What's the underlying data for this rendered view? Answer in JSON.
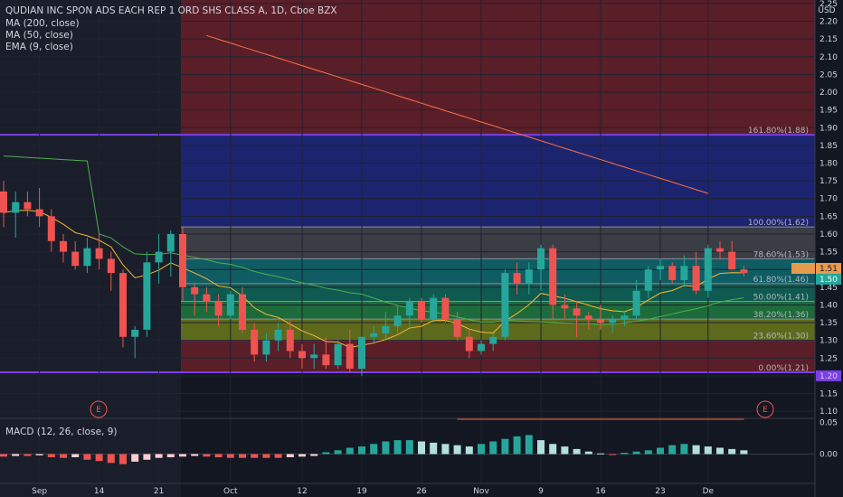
{
  "header": {
    "title": "QUDIAN INC SPON ADS EACH REP 1 ORD SHS CLASS A, 1D, Cboe BZX",
    "ma200": "MA (200, close)",
    "ma50": "MA (50, close)",
    "ema9": "EMA (9, close)",
    "currency": "USD"
  },
  "macd_label": "MACD (12, 26, close, 9)",
  "colors": {
    "background": "#131722",
    "up": "#26a69a",
    "down": "#ef5350",
    "ma200": "#ff7043",
    "ma50": "#4caf50",
    "ema9": "#f7b731",
    "macd_line": "#29b6f6",
    "signal_line": "#ff5722",
    "fib_top_zone": "#6b1f2a",
    "fib_ext_zone": "#1f2a7a",
    "fib_purple": "#7b3fe4"
  },
  "price_labels": {
    "current": "1.50",
    "pivot": "1.51"
  },
  "event_markers": [
    "E",
    "E"
  ],
  "chart_data": {
    "type": "candlestick",
    "price_axis": {
      "ticks": [
        "2.25",
        "2.20",
        "2.15",
        "2.10",
        "2.05",
        "2.00",
        "1.95",
        "1.90",
        "1.85",
        "1.80",
        "1.75",
        "1.70",
        "1.65",
        "1.60",
        "1.55",
        "1.50",
        "1.45",
        "1.40",
        "1.35",
        "1.30",
        "1.25",
        "1.20",
        "1.15",
        "1.10"
      ],
      "range": [
        1.08,
        2.26
      ],
      "highlighted": [
        "1.88",
        "1.20"
      ]
    },
    "x_axis": {
      "labels": [
        {
          "text": "Sep",
          "index": 3
        },
        {
          "text": "14",
          "index": 8
        },
        {
          "text": "21",
          "index": 13
        },
        {
          "text": "Oct",
          "index": 19
        },
        {
          "text": "12",
          "index": 25
        },
        {
          "text": "19",
          "index": 30
        },
        {
          "text": "26",
          "index": 35
        },
        {
          "text": "Nov",
          "index": 40
        },
        {
          "text": "9",
          "index": 45
        },
        {
          "text": "16",
          "index": 50
        },
        {
          "text": "23",
          "index": 55
        },
        {
          "text": "De",
          "index": 59
        }
      ]
    },
    "candles": [
      [
        1.72,
        1.75,
        1.62,
        1.66
      ],
      [
        1.66,
        1.72,
        1.59,
        1.69
      ],
      [
        1.69,
        1.72,
        1.65,
        1.67
      ],
      [
        1.67,
        1.73,
        1.62,
        1.65
      ],
      [
        1.65,
        1.67,
        1.55,
        1.58
      ],
      [
        1.58,
        1.6,
        1.52,
        1.55
      ],
      [
        1.55,
        1.58,
        1.5,
        1.51
      ],
      [
        1.51,
        1.59,
        1.49,
        1.56
      ],
      [
        1.56,
        1.6,
        1.5,
        1.53
      ],
      [
        1.53,
        1.55,
        1.44,
        1.49
      ],
      [
        1.49,
        1.5,
        1.28,
        1.31
      ],
      [
        1.31,
        1.34,
        1.25,
        1.33
      ],
      [
        1.33,
        1.55,
        1.31,
        1.52
      ],
      [
        1.52,
        1.6,
        1.46,
        1.55
      ],
      [
        1.55,
        1.61,
        1.48,
        1.6
      ],
      [
        1.6,
        1.62,
        1.41,
        1.45
      ],
      [
        1.45,
        1.46,
        1.37,
        1.43
      ],
      [
        1.43,
        1.45,
        1.38,
        1.41
      ],
      [
        1.41,
        1.43,
        1.34,
        1.37
      ],
      [
        1.37,
        1.44,
        1.36,
        1.43
      ],
      [
        1.43,
        1.45,
        1.32,
        1.33
      ],
      [
        1.33,
        1.35,
        1.24,
        1.26
      ],
      [
        1.26,
        1.32,
        1.24,
        1.3
      ],
      [
        1.3,
        1.35,
        1.27,
        1.33
      ],
      [
        1.33,
        1.36,
        1.25,
        1.27
      ],
      [
        1.27,
        1.29,
        1.22,
        1.25
      ],
      [
        1.25,
        1.29,
        1.22,
        1.26
      ],
      [
        1.26,
        1.31,
        1.22,
        1.23
      ],
      [
        1.23,
        1.3,
        1.22,
        1.29
      ],
      [
        1.29,
        1.33,
        1.21,
        1.22
      ],
      [
        1.22,
        1.31,
        1.2,
        1.31
      ],
      [
        1.31,
        1.34,
        1.29,
        1.32
      ],
      [
        1.32,
        1.38,
        1.3,
        1.34
      ],
      [
        1.34,
        1.4,
        1.32,
        1.37
      ],
      [
        1.37,
        1.42,
        1.34,
        1.41
      ],
      [
        1.41,
        1.42,
        1.35,
        1.36
      ],
      [
        1.36,
        1.43,
        1.35,
        1.42
      ],
      [
        1.42,
        1.43,
        1.35,
        1.36
      ],
      [
        1.36,
        1.38,
        1.3,
        1.31
      ],
      [
        1.31,
        1.33,
        1.25,
        1.27
      ],
      [
        1.27,
        1.3,
        1.26,
        1.29
      ],
      [
        1.29,
        1.32,
        1.27,
        1.31
      ],
      [
        1.31,
        1.5,
        1.3,
        1.49
      ],
      [
        1.49,
        1.52,
        1.43,
        1.46
      ],
      [
        1.46,
        1.52,
        1.43,
        1.5
      ],
      [
        1.5,
        1.57,
        1.44,
        1.56
      ],
      [
        1.56,
        1.57,
        1.36,
        1.4
      ],
      [
        1.4,
        1.43,
        1.36,
        1.39
      ],
      [
        1.39,
        1.41,
        1.31,
        1.37
      ],
      [
        1.37,
        1.38,
        1.33,
        1.36
      ],
      [
        1.36,
        1.4,
        1.33,
        1.35
      ],
      [
        1.35,
        1.37,
        1.32,
        1.36
      ],
      [
        1.36,
        1.38,
        1.34,
        1.37
      ],
      [
        1.37,
        1.47,
        1.36,
        1.44
      ],
      [
        1.44,
        1.51,
        1.42,
        1.5
      ],
      [
        1.5,
        1.53,
        1.47,
        1.51
      ],
      [
        1.51,
        1.52,
        1.46,
        1.47
      ],
      [
        1.47,
        1.54,
        1.45,
        1.51
      ],
      [
        1.51,
        1.55,
        1.43,
        1.44
      ],
      [
        1.44,
        1.57,
        1.42,
        1.56
      ],
      [
        1.56,
        1.58,
        1.53,
        1.55
      ],
      [
        1.55,
        1.58,
        1.5,
        1.5
      ],
      [
        1.5,
        1.51,
        1.48,
        1.49
      ]
    ],
    "fib_levels": [
      {
        "label": "161.80%(1.88)",
        "price": 1.88
      },
      {
        "label": "100.00%(1.62)",
        "price": 1.62
      },
      {
        "label": "78.60%(1.53)",
        "price": 1.53
      },
      {
        "label": "61.80%(1.46)",
        "price": 1.46
      },
      {
        "label": "50.00%(1.41)",
        "price": 1.41
      },
      {
        "label": "38.20%(1.36)",
        "price": 1.36
      },
      {
        "label": "23.60%(1.30)",
        "price": 1.3
      },
      {
        "label": "0.00%(1.21)",
        "price": 1.21
      }
    ],
    "macd_axis": {
      "ticks": [
        "0.05",
        "0.00"
      ],
      "range": [
        -0.045,
        0.055
      ]
    },
    "macd_histogram": [
      -0.004,
      -0.003,
      -0.003,
      -0.002,
      -0.005,
      -0.006,
      -0.005,
      -0.009,
      -0.011,
      -0.014,
      -0.016,
      -0.012,
      -0.009,
      -0.006,
      -0.005,
      -0.004,
      -0.003,
      -0.004,
      -0.005,
      -0.006,
      -0.006,
      -0.006,
      -0.006,
      -0.006,
      -0.005,
      -0.004,
      -0.003,
      0.003,
      0.006,
      0.01,
      0.012,
      0.016,
      0.02,
      0.022,
      0.022,
      0.02,
      0.018,
      0.016,
      0.014,
      0.012,
      0.016,
      0.02,
      0.024,
      0.028,
      0.03,
      0.022,
      0.016,
      0.012,
      0.008,
      0.004,
      0.001,
      -0.001,
      0.002,
      0.004,
      0.006,
      0.01,
      0.014,
      0.016,
      0.014,
      0.012,
      0.01,
      0.008,
      0.006
    ]
  }
}
